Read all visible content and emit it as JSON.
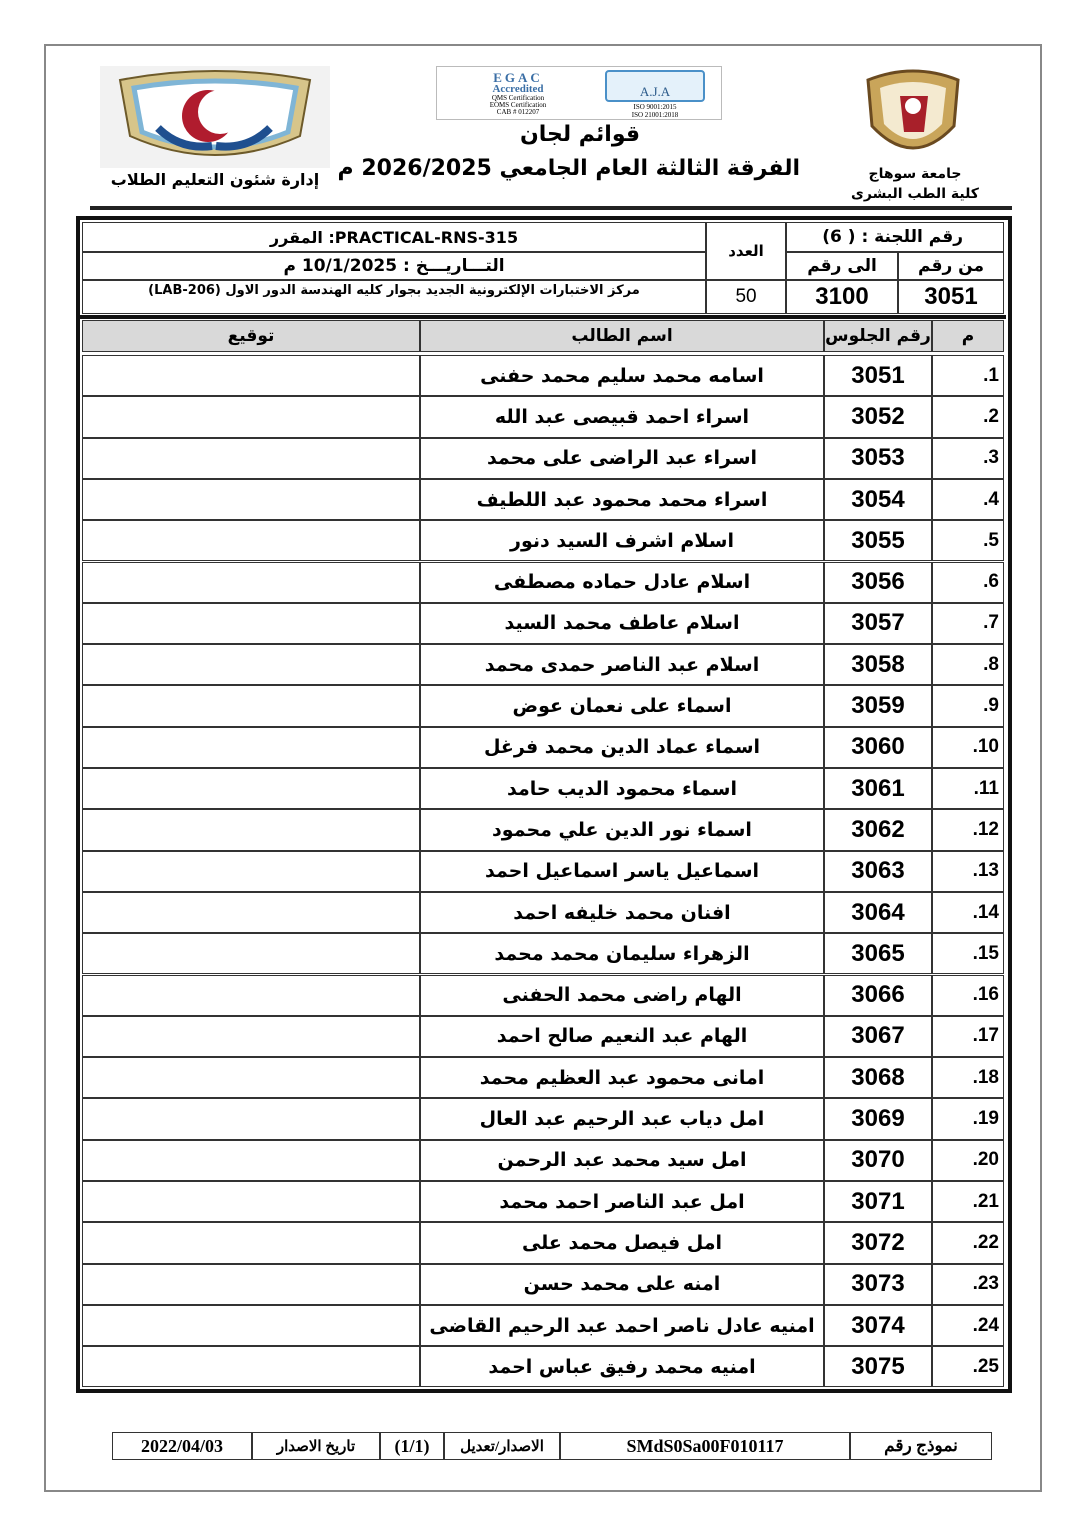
{
  "header": {
    "right_logo_lines": [
      "جامعة سوهاج",
      "كلية الطب البشرى"
    ],
    "left_logo_caption": "إدارة شئون التعليم الطلاب",
    "title": "قوائم لجان",
    "subtitle": "الفرقة الثالثة العام الجامعي 2026/2025 م",
    "cert_logo_text": [
      "EGAC",
      "Accredited",
      "QMS Certification",
      "EOMS Certification",
      "CAB # 012207",
      "A.J.A",
      "ISO 9001:2015",
      "ISO 21001:2018"
    ]
  },
  "info": {
    "committee_label": "رقم اللجنة : ( 6)",
    "from_label": "من رقم",
    "to_label": "الى رقم",
    "from_value": "3051",
    "to_value": "3100",
    "count_label": "العدد",
    "count_value": "50",
    "course": "PRACTICAL-RNS-315: المقرر",
    "date": "التـــاريـــخ : 10/1/2025 م",
    "location": "مركز الاختبارات الإلكترونية الجديد بجوار كليه الهندسة الدور الاول (LAB-206)"
  },
  "table": {
    "headers": {
      "index": "م",
      "seat": "رقم الجلوس",
      "name": "اسم الطالب",
      "signature": "توقيع"
    },
    "rows": [
      {
        "index": "1.",
        "seat": "3051",
        "name": "اسامه محمد سليم محمد حفنى"
      },
      {
        "index": "2.",
        "seat": "3052",
        "name": "اسراء احمد قبيصى عبد الله"
      },
      {
        "index": "3.",
        "seat": "3053",
        "name": "اسراء عبد الراضى على محمد"
      },
      {
        "index": "4.",
        "seat": "3054",
        "name": "اسراء محمد محمود عبد اللطيف"
      },
      {
        "index": "5.",
        "seat": "3055",
        "name": "اسلام اشرف السيد دنور"
      },
      {
        "index": "6.",
        "seat": "3056",
        "name": "اسلام عادل حماده مصطفى"
      },
      {
        "index": "7.",
        "seat": "3057",
        "name": "اسلام عاطف محمد السيد"
      },
      {
        "index": "8.",
        "seat": "3058",
        "name": "اسلام عبد الناصر حمدى محمد"
      },
      {
        "index": "9.",
        "seat": "3059",
        "name": "اسماء على نعمان عوض"
      },
      {
        "index": "10.",
        "seat": "3060",
        "name": "اسماء عماد الدين محمد فرغل"
      },
      {
        "index": "11.",
        "seat": "3061",
        "name": "اسماء محمود الديب حامد"
      },
      {
        "index": "12.",
        "seat": "3062",
        "name": "اسماء نور الدين علي محمود"
      },
      {
        "index": "13.",
        "seat": "3063",
        "name": "اسماعيل ياسر اسماعيل احمد"
      },
      {
        "index": "14.",
        "seat": "3064",
        "name": "افنان محمد خليفه احمد"
      },
      {
        "index": "15.",
        "seat": "3065",
        "name": "الزهراء سليمان محمد محمد"
      },
      {
        "index": "16.",
        "seat": "3066",
        "name": "الهام راضى محمد الحفنى"
      },
      {
        "index": "17.",
        "seat": "3067",
        "name": "الهام عبد النعيم صالح احمد"
      },
      {
        "index": "18.",
        "seat": "3068",
        "name": "امانى محمود عبد العظيم محمد"
      },
      {
        "index": "19.",
        "seat": "3069",
        "name": "امل دياب عبد الرحيم عبد العال"
      },
      {
        "index": "20.",
        "seat": "3070",
        "name": "امل سيد محمد عبد الرحمن"
      },
      {
        "index": "21.",
        "seat": "3071",
        "name": "امل عبد الناصر احمد محمد"
      },
      {
        "index": "22.",
        "seat": "3072",
        "name": "امل فيصل محمد على"
      },
      {
        "index": "23.",
        "seat": "3073",
        "name": "امنه على محمد حسن"
      },
      {
        "index": "24.",
        "seat": "3074",
        "name": "امنيه عادل ناصر احمد عبد الرحيم القاضى"
      },
      {
        "index": "25.",
        "seat": "3075",
        "name": "امنيه محمد رفيق عباس احمد"
      }
    ]
  },
  "footer": {
    "form_label": "نموذج رقم",
    "form_code": "SMdS0Sa00F010117",
    "version_label": "الاصدار/تعديل",
    "version_value": "(1/1)",
    "issue_date_label": "تاريخ الاصدار",
    "issue_date": "2022/04/03"
  }
}
